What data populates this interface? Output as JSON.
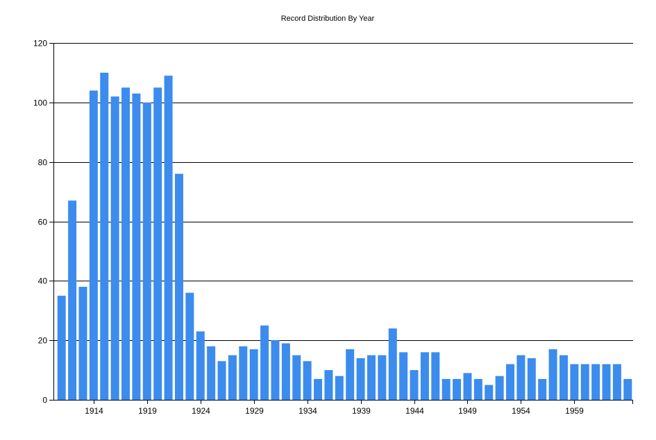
{
  "chart_data": {
    "type": "bar",
    "title": "Record Distribution By Year",
    "xlabel": "",
    "ylabel": "",
    "ylim": [
      0,
      120
    ],
    "yticks": [
      0,
      20,
      40,
      60,
      80,
      100,
      120
    ],
    "x_tick_labels": [
      "1914",
      "1919",
      "1924",
      "1929",
      "1934",
      "1939",
      "1944",
      "1949",
      "1954",
      "1959"
    ],
    "categories": [
      1911,
      1912,
      1913,
      1914,
      1915,
      1916,
      1917,
      1918,
      1919,
      1920,
      1921,
      1922,
      1923,
      1924,
      1925,
      1926,
      1927,
      1928,
      1929,
      1930,
      1931,
      1932,
      1933,
      1934,
      1935,
      1936,
      1937,
      1938,
      1939,
      1940,
      1941,
      1942,
      1943,
      1944,
      1945,
      1946,
      1947,
      1948,
      1949,
      1950,
      1951,
      1952,
      1953,
      1954,
      1955,
      1956,
      1957,
      1958,
      1959,
      1960,
      1961,
      1962,
      1963,
      1964
    ],
    "values": [
      35,
      67,
      38,
      104,
      110,
      102,
      105,
      103,
      100,
      105,
      109,
      76,
      36,
      23,
      18,
      13,
      15,
      18,
      17,
      25,
      20,
      19,
      15,
      13,
      7,
      10,
      8,
      17,
      14,
      15,
      15,
      24,
      16,
      10,
      16,
      16,
      7,
      7,
      9,
      7,
      5,
      8,
      12,
      15,
      14,
      7,
      17,
      15,
      12,
      12,
      12,
      12,
      12,
      7
    ],
    "grid": true,
    "legend": "none",
    "bar_color": "#3c8ced"
  }
}
